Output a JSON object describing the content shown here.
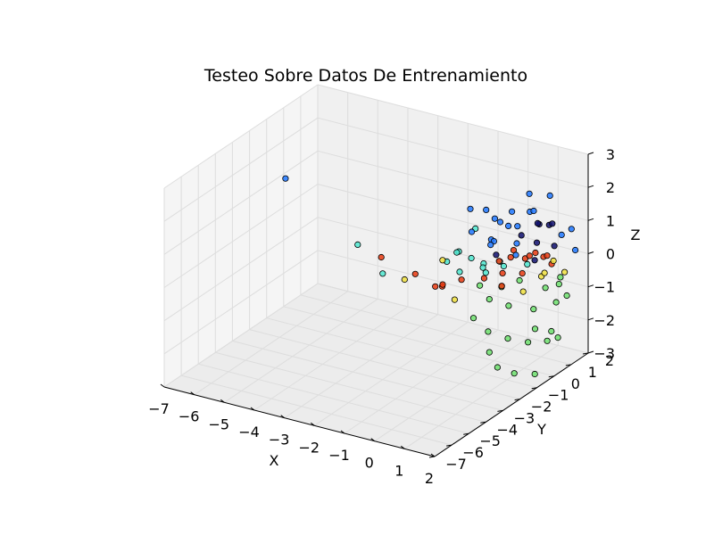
{
  "chart_data": {
    "type": "scatter",
    "title": "Testeo Sobre Datos De Entrenamiento",
    "xlabel": "X",
    "ylabel": "Y",
    "zlabel": "Z",
    "xlim": [
      -7,
      2
    ],
    "ylim": [
      -7,
      2
    ],
    "zlim": [
      -3,
      3
    ],
    "grid": true,
    "legend": "none",
    "x_ticks": [
      "−7",
      "−6",
      "−5",
      "−4",
      "−3",
      "−2",
      "−1",
      "0",
      "1",
      "2"
    ],
    "y_ticks": [
      "−7",
      "−6",
      "−5",
      "−4",
      "−3",
      "−2",
      "−1",
      "0",
      "1",
      "2"
    ],
    "z_ticks": [
      "−3",
      "−2",
      "−1",
      "0",
      "1",
      "2",
      "3"
    ],
    "colors": {
      "class_0": "#1f77ff",
      "class_1": "#4fe8d0",
      "class_2": "#6ee06e",
      "class_3": "#f0e040",
      "class_4": "#e83a10",
      "class_5": "#10106e",
      "pane": "#f0f0f0",
      "grid": "#dddddd"
    },
    "points": [
      {
        "x": -6.2,
        "y": -1.3,
        "z": 1.5,
        "c": "class_0"
      },
      {
        "x": -3.4,
        "y": -2.0,
        "z": 0.4,
        "c": "class_1"
      },
      {
        "x": -2.5,
        "y": -2.2,
        "z": 0.3,
        "c": "class_4"
      },
      {
        "x": -2.0,
        "y": -3.0,
        "z": 0.2,
        "c": "class_1"
      },
      {
        "x": -1.5,
        "y": -2.6,
        "z": 0.0,
        "c": "class_3"
      },
      {
        "x": -1.2,
        "y": -2.5,
        "z": 0.2,
        "c": "class_4"
      },
      {
        "x": -0.6,
        "y": -1.0,
        "z": 0.5,
        "c": "class_1"
      },
      {
        "x": -0.3,
        "y": -0.8,
        "z": 0.3,
        "c": "class_1"
      },
      {
        "x": -0.4,
        "y": -2.3,
        "z": 0.0,
        "c": "class_4"
      },
      {
        "x": 0.0,
        "y": -1.9,
        "z": 0.1,
        "c": "class_4"
      },
      {
        "x": -0.8,
        "y": -1.6,
        "z": 0.4,
        "c": "class_3"
      },
      {
        "x": -0.5,
        "y": -1.3,
        "z": 0.6,
        "c": "class_1"
      },
      {
        "x": 0.2,
        "y": -1.0,
        "z": 0.2,
        "c": "class_1"
      },
      {
        "x": -0.9,
        "y": 0.2,
        "z": 1.3,
        "c": "class_0"
      },
      {
        "x": -0.6,
        "y": 0.6,
        "z": 1.2,
        "c": "class_0"
      },
      {
        "x": -0.2,
        "y": 0.4,
        "z": 1.1,
        "c": "class_0"
      },
      {
        "x": 0.2,
        "y": 0.7,
        "z": 1.3,
        "c": "class_0"
      },
      {
        "x": 0.5,
        "y": 0.5,
        "z": 1.0,
        "c": "class_0"
      },
      {
        "x": 0.8,
        "y": 0.2,
        "z": 0.9,
        "c": "class_5"
      },
      {
        "x": 1.0,
        "y": 0.8,
        "z": 1.1,
        "c": "class_5"
      },
      {
        "x": 0.7,
        "y": 1.1,
        "z": 1.3,
        "c": "class_0"
      },
      {
        "x": 1.2,
        "y": 0.4,
        "z": 0.7,
        "c": "class_5"
      },
      {
        "x": 1.1,
        "y": 1.3,
        "z": 0.9,
        "c": "class_5"
      },
      {
        "x": 0.4,
        "y": 1.4,
        "z": 1.1,
        "c": "class_0"
      },
      {
        "x": -0.3,
        "y": 0.9,
        "z": 0.8,
        "c": "class_0"
      },
      {
        "x": 0.0,
        "y": 0.0,
        "z": 0.6,
        "c": "class_0"
      },
      {
        "x": 0.3,
        "y": -0.4,
        "z": 0.4,
        "c": "class_5"
      },
      {
        "x": 0.9,
        "y": -0.3,
        "z": 0.5,
        "c": "class_0"
      },
      {
        "x": 1.3,
        "y": 0.1,
        "z": 0.3,
        "c": "class_5"
      },
      {
        "x": 1.5,
        "y": 0.9,
        "z": 0.5,
        "c": "class_5"
      },
      {
        "x": 1.4,
        "y": 1.5,
        "z": 0.6,
        "c": "class_0"
      },
      {
        "x": 0.6,
        "y": 1.6,
        "z": 0.7,
        "c": "class_5"
      },
      {
        "x": -0.2,
        "y": 1.2,
        "z": 0.6,
        "c": "class_0"
      },
      {
        "x": 0.5,
        "y": 0.1,
        "z": 0.2,
        "c": "class_4"
      },
      {
        "x": 0.9,
        "y": 0.5,
        "z": 0.2,
        "c": "class_4"
      },
      {
        "x": 1.2,
        "y": 1.0,
        "z": 0.1,
        "c": "class_4"
      },
      {
        "x": 0.7,
        "y": 1.2,
        "z": 0.0,
        "c": "class_4"
      },
      {
        "x": 0.2,
        "y": 0.8,
        "z": 0.1,
        "c": "class_4"
      },
      {
        "x": 0.0,
        "y": 0.3,
        "z": -0.1,
        "c": "class_4"
      },
      {
        "x": 0.4,
        "y": -0.2,
        "z": -0.2,
        "c": "class_4"
      },
      {
        "x": 1.0,
        "y": -0.1,
        "z": -0.1,
        "c": "class_4"
      },
      {
        "x": 1.4,
        "y": 0.5,
        "z": -0.2,
        "c": "class_3"
      },
      {
        "x": 1.3,
        "y": 1.2,
        "z": -0.1,
        "c": "class_3"
      },
      {
        "x": 0.8,
        "y": 1.5,
        "z": -0.2,
        "c": "class_4"
      },
      {
        "x": 0.3,
        "y": 1.3,
        "z": -0.3,
        "c": "class_4"
      },
      {
        "x": -0.2,
        "y": 0.7,
        "z": -0.3,
        "c": "class_1"
      },
      {
        "x": -0.4,
        "y": 0.1,
        "z": -0.2,
        "c": "class_1"
      },
      {
        "x": -0.1,
        "y": -0.4,
        "z": -0.4,
        "c": "class_4"
      },
      {
        "x": 0.6,
        "y": -0.6,
        "z": -0.4,
        "c": "class_4"
      },
      {
        "x": 1.2,
        "y": -0.4,
        "z": -0.5,
        "c": "class_3"
      },
      {
        "x": 1.6,
        "y": 0.2,
        "z": -0.5,
        "c": "class_2"
      },
      {
        "x": 1.7,
        "y": 0.9,
        "z": -0.4,
        "c": "class_2"
      },
      {
        "x": 1.5,
        "y": 1.5,
        "z": -0.5,
        "c": "class_3"
      },
      {
        "x": 0.9,
        "y": 1.8,
        "z": -0.5,
        "c": "class_4"
      },
      {
        "x": 0.2,
        "y": 1.6,
        "z": -0.6,
        "c": "class_1"
      },
      {
        "x": -0.3,
        "y": 1.1,
        "z": -0.6,
        "c": "class_1"
      },
      {
        "x": -0.5,
        "y": 0.4,
        "z": -0.6,
        "c": "class_1"
      },
      {
        "x": -0.3,
        "y": -0.3,
        "z": -0.7,
        "c": "class_2"
      },
      {
        "x": 0.3,
        "y": -0.8,
        "z": -0.8,
        "c": "class_2"
      },
      {
        "x": 1.0,
        "y": -0.9,
        "z": -0.8,
        "c": "class_2"
      },
      {
        "x": 1.6,
        "y": -0.5,
        "z": -0.9,
        "c": "class_2"
      },
      {
        "x": 1.9,
        "y": 0.3,
        "z": -0.9,
        "c": "class_2"
      },
      {
        "x": 1.8,
        "y": 1.1,
        "z": -1.0,
        "c": "class_2"
      },
      {
        "x": 1.2,
        "y": 1.7,
        "z": -1.0,
        "c": "class_2"
      },
      {
        "x": 0.5,
        "y": 1.9,
        "z": -1.0,
        "c": "class_3"
      },
      {
        "x": 0.0,
        "y": 1.5,
        "z": -1.1,
        "c": "class_2"
      },
      {
        "x": -0.2,
        "y": 0.8,
        "z": -1.1,
        "c": "class_2"
      },
      {
        "x": 0.0,
        "y": -1.2,
        "z": -1.3,
        "c": "class_2"
      },
      {
        "x": 0.6,
        "y": -1.4,
        "z": -1.5,
        "c": "class_2"
      },
      {
        "x": 1.2,
        "y": -1.3,
        "z": -1.6,
        "c": "class_2"
      },
      {
        "x": 1.7,
        "y": -1.0,
        "z": -1.7,
        "c": "class_2"
      },
      {
        "x": 2.0,
        "y": -0.4,
        "z": -1.8,
        "c": "class_2"
      },
      {
        "x": 1.9,
        "y": 0.4,
        "z": -2.0,
        "c": "class_2"
      },
      {
        "x": 1.4,
        "y": 0.9,
        "z": -2.1,
        "c": "class_2"
      },
      {
        "x": 0.8,
        "y": 1.0,
        "z": -2.2,
        "c": "class_2"
      },
      {
        "x": 0.3,
        "y": -0.8,
        "z": -2.4,
        "c": "class_2"
      },
      {
        "x": 0.8,
        "y": -1.2,
        "z": -2.6,
        "c": "class_2"
      },
      {
        "x": 1.3,
        "y": -1.1,
        "z": -2.7,
        "c": "class_2"
      },
      {
        "x": 1.7,
        "y": -0.6,
        "z": -2.8,
        "c": "class_2"
      },
      {
        "x": -0.8,
        "y": -0.6,
        "z": -0.3,
        "c": "class_1"
      },
      {
        "x": -1.0,
        "y": -1.0,
        "z": 0.1,
        "c": "class_1"
      },
      {
        "x": -0.7,
        "y": -1.8,
        "z": -0.3,
        "c": "class_4"
      },
      {
        "x": -1.1,
        "y": -1.5,
        "z": -0.5,
        "c": "class_4"
      },
      {
        "x": -0.4,
        "y": -1.6,
        "z": -0.7,
        "c": "class_3"
      },
      {
        "x": -0.6,
        "y": 0.9,
        "z": 0.2,
        "c": "class_0"
      },
      {
        "x": -0.9,
        "y": 0.5,
        "z": 0.6,
        "c": "class_1"
      },
      {
        "x": 1.8,
        "y": 1.6,
        "z": 0.2,
        "c": "class_0"
      },
      {
        "x": 1.9,
        "y": 1.2,
        "z": 1.0,
        "c": "class_0"
      },
      {
        "x": 0.1,
        "y": 1.9,
        "z": 1.4,
        "c": "class_0"
      },
      {
        "x": 0.9,
        "y": 1.7,
        "z": 1.6,
        "c": "class_0"
      },
      {
        "x": 1.6,
        "y": 0.6,
        "z": 1.3,
        "c": "class_5"
      },
      {
        "x": 1.1,
        "y": -0.6,
        "z": 1.0,
        "c": "class_0"
      },
      {
        "x": 0.4,
        "y": -0.9,
        "z": 0.9,
        "c": "class_0"
      },
      {
        "x": -0.4,
        "y": -0.6,
        "z": 1.0,
        "c": "class_0"
      }
    ]
  }
}
